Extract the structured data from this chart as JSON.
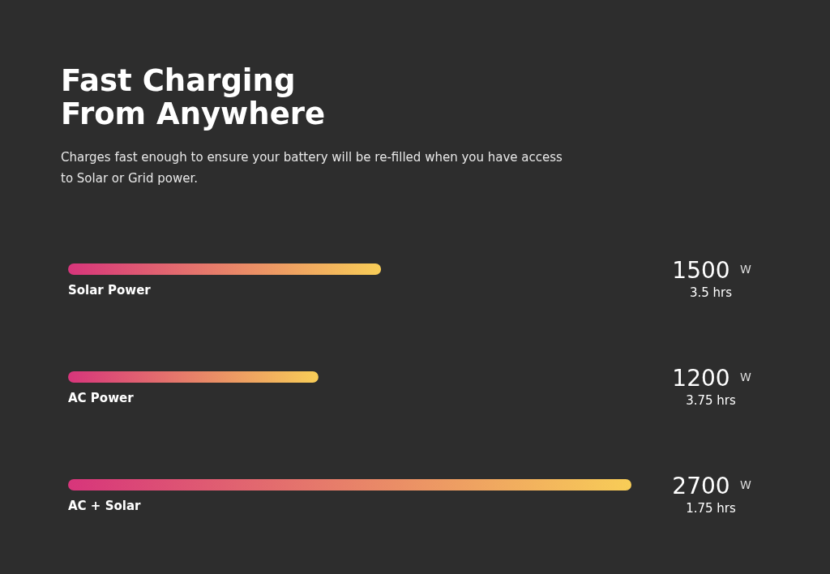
{
  "chart_data": {
    "type": "bar",
    "orientation": "horizontal",
    "title": "Fast Charging\nFrom Anywhere",
    "subtitle": "Charges fast enough to ensure your battery will be re-filled when you have access to Solar or Grid power.",
    "categories": [
      "Solar Power",
      "AC Power",
      "AC + Solar"
    ],
    "values": [
      1500,
      1200,
      2700
    ],
    "value_labels": [
      "1500 W",
      "1200 W",
      "2700 W"
    ],
    "annotations": [
      "3.5 hrs",
      "3.75 hrs",
      "1.75 hrs"
    ]
  }
}
